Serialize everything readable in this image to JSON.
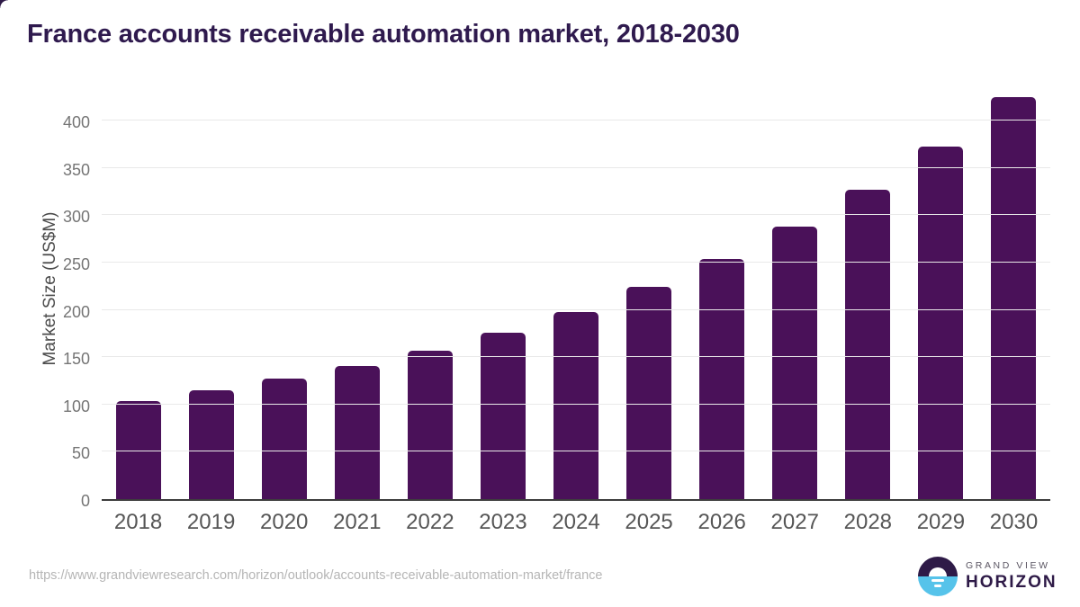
{
  "header": {
    "title": "France accounts receivable automation market, 2018-2030"
  },
  "chart_data": {
    "type": "bar",
    "title": "France accounts receivable automation market, 2018-2030",
    "categories": [
      "2018",
      "2019",
      "2020",
      "2021",
      "2022",
      "2023",
      "2024",
      "2025",
      "2026",
      "2027",
      "2028",
      "2029",
      "2030"
    ],
    "values": [
      104,
      115,
      127,
      141,
      157,
      176,
      198,
      224,
      254,
      288,
      327,
      373,
      425
    ],
    "xlabel": "",
    "ylabel": "Market Size (US$M)",
    "ylim": [
      0,
      425
    ],
    "yticks": [
      0,
      50,
      100,
      150,
      200,
      250,
      300,
      350,
      400
    ],
    "grid": "horizontal",
    "legend": "none",
    "bar_color": "#4a1159"
  },
  "footer": {
    "source_url": "https://www.grandviewresearch.com/horizon/outlook/accounts-receivable-automation-market/france"
  },
  "logo": {
    "line1": "GRAND VIEW",
    "line2": "HORIZON"
  },
  "colors": {
    "bar": "#4a1159",
    "title_text": "#2f1a4e",
    "gridline": "#e9e9e9",
    "axis_line": "#3d3d3d",
    "y_tick_text": "#757575",
    "x_tick_text": "#565656",
    "source_url_text": "#b5b5b5",
    "logo_dark": "#2e1a47",
    "logo_blue": "#56c3ea"
  }
}
